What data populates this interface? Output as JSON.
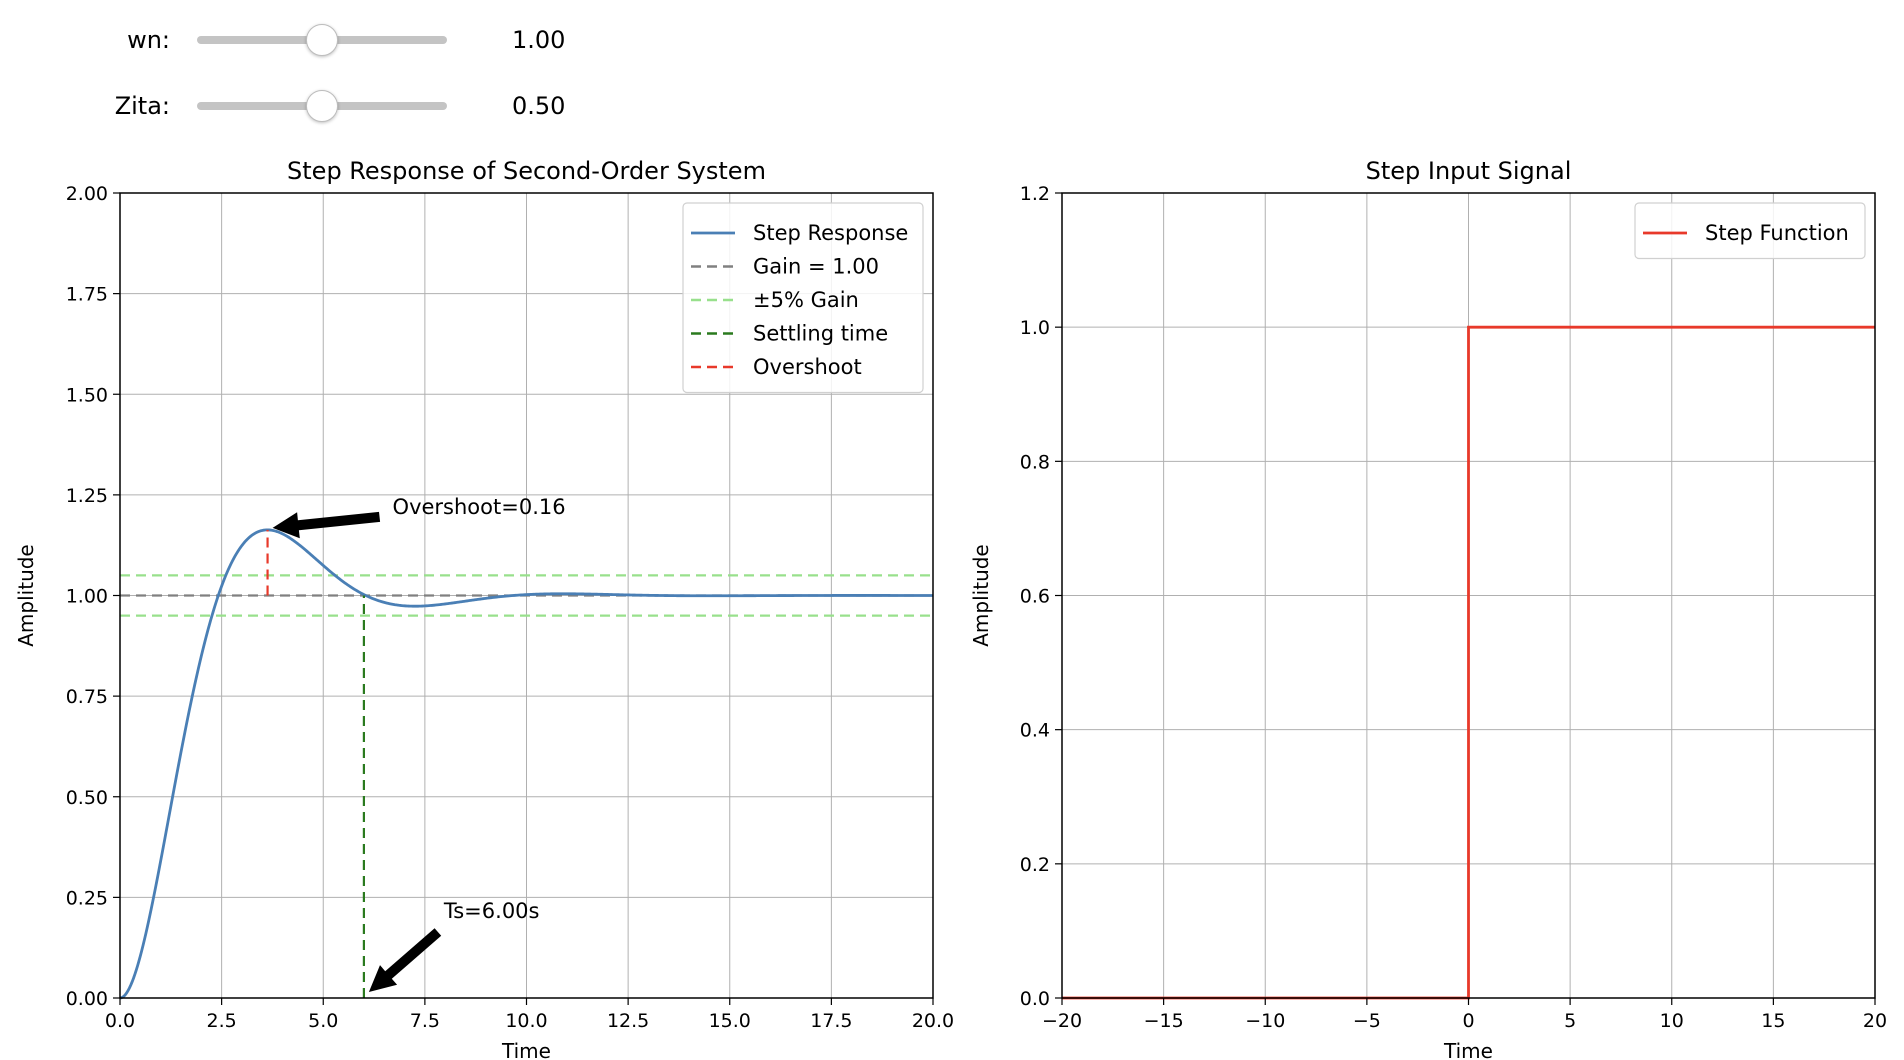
{
  "controls": {
    "wn": {
      "label": "wn:",
      "value": 1.0,
      "display": "1.00",
      "min": 0,
      "max": 2
    },
    "zeta": {
      "label": "Zita:",
      "value": 0.5,
      "display": "0.50",
      "min": 0,
      "max": 1
    }
  },
  "chart_data": [
    {
      "type": "line",
      "title": "Step Response of Second-Order System",
      "xlabel": "Time",
      "ylabel": "Amplitude",
      "xlim": [
        0,
        20
      ],
      "ylim": [
        0,
        2
      ],
      "xticks": [
        "0.0",
        "2.5",
        "5.0",
        "7.5",
        "10.0",
        "12.5",
        "15.0",
        "17.5",
        "20.0"
      ],
      "yticks": [
        "0.00",
        "0.25",
        "0.50",
        "0.75",
        "1.00",
        "1.25",
        "1.50",
        "1.75",
        "2.00"
      ],
      "grid": true,
      "legend_position": "top-right",
      "legend": [
        "Step Response",
        "Gain = 1.00",
        "±5% Gain",
        "Settling time",
        "Overshoot"
      ],
      "colors": {
        "response": "#4a7fb5",
        "gain": "#808080",
        "band": "#98e08c",
        "settling": "#2a7a1e",
        "overshoot": "#e8392a"
      },
      "series": [
        {
          "name": "Step Response",
          "wn": 1.0,
          "zeta": 0.5,
          "x_range": [
            0,
            20
          ]
        }
      ],
      "gain": 1.0,
      "band": [
        0.95,
        1.05
      ],
      "settling_time": 6.0,
      "peak": {
        "x": 3.63,
        "y": 1.163
      },
      "annotations": {
        "overshoot": "Overshoot=0.16",
        "settling": "Ts=6.00s"
      }
    },
    {
      "type": "line",
      "title": "Step Input Signal",
      "xlabel": "Time",
      "ylabel": "Amplitude",
      "xlim": [
        -20,
        20
      ],
      "ylim": [
        0,
        1.2
      ],
      "xticks": [
        "−20",
        "−15",
        "−10",
        "−5",
        "0",
        "5",
        "10",
        "15",
        "20"
      ],
      "yticks": [
        "0.0",
        "0.2",
        "0.4",
        "0.6",
        "0.8",
        "1.0",
        "1.2"
      ],
      "grid": true,
      "legend_position": "top-right",
      "legend": [
        "Step Function"
      ],
      "colors": {
        "step": "#e8392a"
      },
      "series": [
        {
          "name": "Step Function",
          "x": [
            -20,
            0,
            0,
            20
          ],
          "y": [
            0,
            0,
            1,
            1
          ]
        }
      ]
    }
  ]
}
